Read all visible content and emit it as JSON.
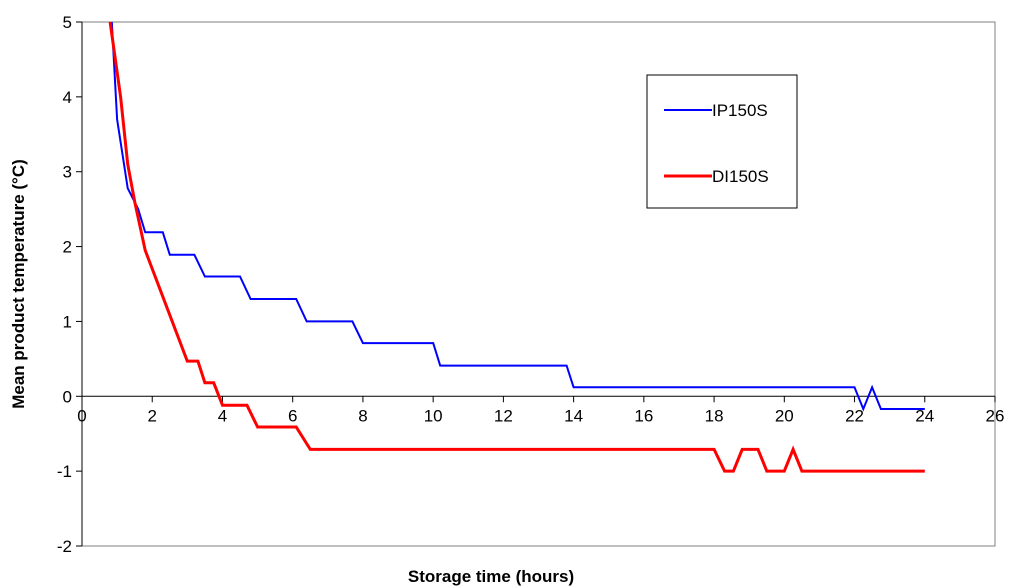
{
  "chart_data": {
    "type": "line",
    "title": "",
    "xlabel": "Storage time (hours)",
    "ylabel": "Mean product temperature (°C)",
    "xlim": [
      0,
      26
    ],
    "ylim": [
      -2,
      5
    ],
    "xticks": [
      0,
      2,
      4,
      6,
      8,
      10,
      12,
      14,
      16,
      18,
      20,
      22,
      24,
      26
    ],
    "yticks": [
      -2,
      -1,
      0,
      1,
      2,
      3,
      4,
      5
    ],
    "grid": false,
    "legend_position": "top-right",
    "series": [
      {
        "name": "IP150S",
        "color": "#0000ff",
        "points": [
          [
            0.85,
            5.0
          ],
          [
            1.0,
            3.7
          ],
          [
            1.3,
            2.78
          ],
          [
            1.6,
            2.5
          ],
          [
            1.8,
            2.19
          ],
          [
            2.3,
            2.19
          ],
          [
            2.5,
            1.89
          ],
          [
            3.2,
            1.89
          ],
          [
            3.5,
            1.6
          ],
          [
            4.5,
            1.6
          ],
          [
            4.8,
            1.3
          ],
          [
            6.1,
            1.3
          ],
          [
            6.4,
            1.0
          ],
          [
            7.7,
            1.0
          ],
          [
            8.0,
            0.71
          ],
          [
            10.0,
            0.71
          ],
          [
            10.2,
            0.41
          ],
          [
            13.8,
            0.41
          ],
          [
            14.0,
            0.12
          ],
          [
            22.0,
            0.12
          ],
          [
            22.25,
            -0.17
          ],
          [
            22.5,
            0.12
          ],
          [
            22.75,
            -0.17
          ],
          [
            24.0,
            -0.17
          ]
        ]
      },
      {
        "name": "DI150S",
        "color": "#ff0000",
        "points": [
          [
            0.8,
            5.0
          ],
          [
            1.1,
            4.0
          ],
          [
            1.3,
            3.1
          ],
          [
            1.5,
            2.6
          ],
          [
            1.8,
            1.95
          ],
          [
            3.0,
            0.47
          ],
          [
            3.3,
            0.47
          ],
          [
            3.5,
            0.18
          ],
          [
            3.75,
            0.18
          ],
          [
            4.0,
            -0.12
          ],
          [
            4.7,
            -0.12
          ],
          [
            5.0,
            -0.41
          ],
          [
            6.1,
            -0.41
          ],
          [
            6.5,
            -0.71
          ],
          [
            18.0,
            -0.71
          ],
          [
            18.3,
            -1.0
          ],
          [
            18.55,
            -1.0
          ],
          [
            18.8,
            -0.71
          ],
          [
            19.25,
            -0.71
          ],
          [
            19.5,
            -1.0
          ],
          [
            20.0,
            -1.0
          ],
          [
            20.25,
            -0.71
          ],
          [
            20.5,
            -1.0
          ],
          [
            24.0,
            -1.0
          ]
        ]
      }
    ]
  }
}
